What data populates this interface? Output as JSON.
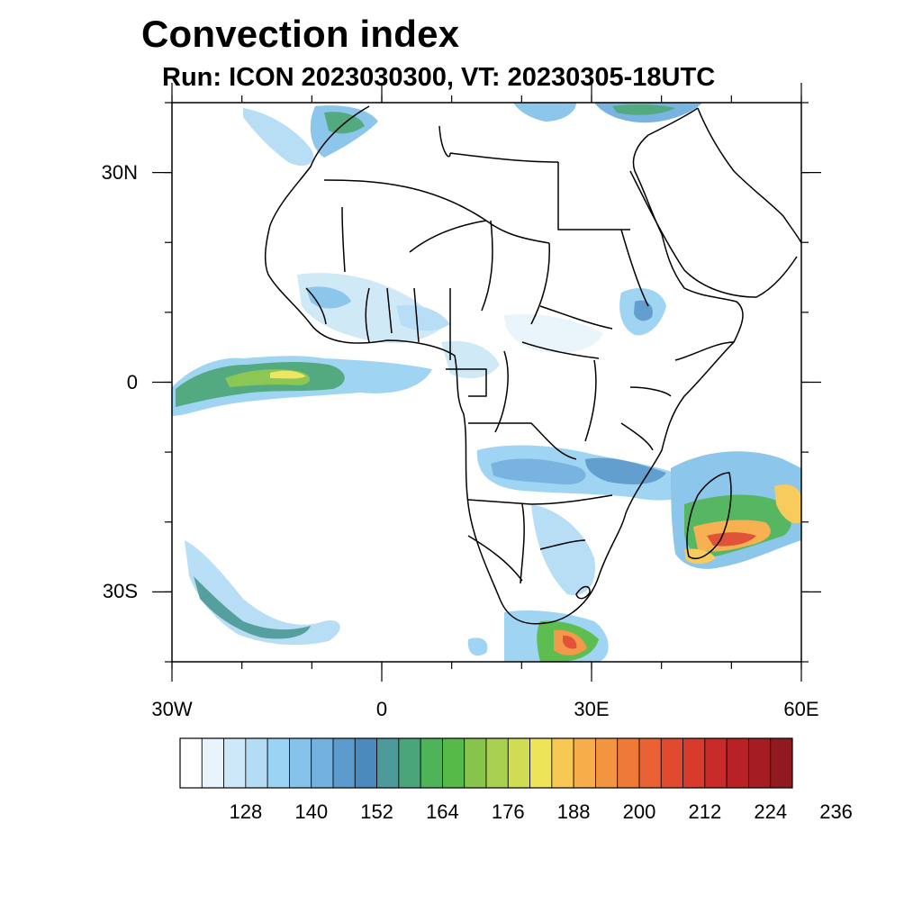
{
  "title": "Convection index",
  "subtitle": "Run: ICON 2023030300,  VT: 20230305-18UTC",
  "map": {
    "lon_range": [
      -30,
      60
    ],
    "lat_range": [
      -40,
      40
    ],
    "lat_ticks": [
      {
        "value": 30,
        "label": "30N"
      },
      {
        "value": 0,
        "label": "0"
      },
      {
        "value": -30,
        "label": "30S"
      }
    ],
    "lon_ticks": [
      {
        "value": -30,
        "label": "30W"
      },
      {
        "value": 0,
        "label": "0"
      },
      {
        "value": 30,
        "label": "30E"
      },
      {
        "value": 60,
        "label": "60E"
      }
    ]
  },
  "colorbar": {
    "colors": [
      "#ffffff",
      "#e8f4fb",
      "#cde8f7",
      "#b4ddf5",
      "#9ad3f3",
      "#86c3ea",
      "#72b1e0",
      "#5a9acd",
      "#4a8abd",
      "#4c9a9a",
      "#4aa57a",
      "#4fb35a",
      "#56ba48",
      "#86c44c",
      "#aad04f",
      "#cfdc54",
      "#eee45a",
      "#f7c954",
      "#f7ad4a",
      "#f39440",
      "#ef7a38",
      "#ea6233",
      "#e04a2f",
      "#d83a2e",
      "#c92a2a",
      "#b82226",
      "#a51d22",
      "#901a1f"
    ],
    "labels": [
      "128",
      "140",
      "152",
      "164",
      "176",
      "188",
      "200",
      "212",
      "224",
      "236"
    ]
  }
}
